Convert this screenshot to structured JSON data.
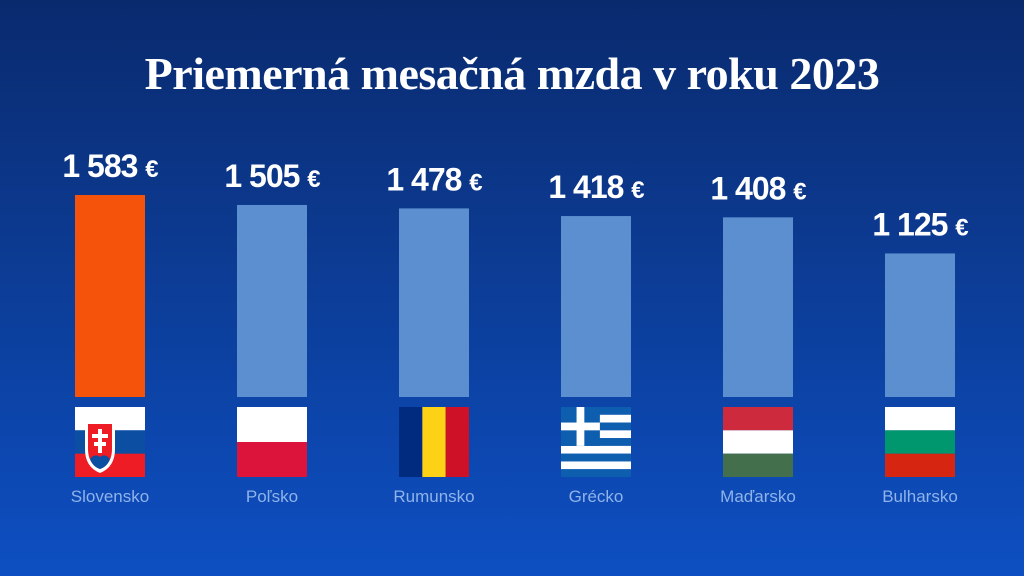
{
  "title": "Priemerná mesačná mzda v roku 2023",
  "colors": {
    "highlight_bar": "#f5520c",
    "bar": "#5b8fcf"
  },
  "chart_data": {
    "type": "bar",
    "title": "Priemerná mesačná mzda v roku 2023",
    "categories": [
      "Slovensko",
      "Poľsko",
      "Rumunsko",
      "Grécko",
      "Maďarsko",
      "Bulharsko"
    ],
    "values": [
      1583,
      1505,
      1478,
      1418,
      1408,
      1125
    ],
    "value_labels": [
      "1 583",
      "1 505",
      "1 478",
      "1 418",
      "1 408",
      "1 125"
    ],
    "unit": "€",
    "highlight_index": 0,
    "flags": [
      "flag-slovakia-icon",
      "flag-poland-icon",
      "flag-romania-icon",
      "flag-greece-icon",
      "flag-hungary-icon",
      "flag-bulgaria-icon"
    ],
    "xlabel": "",
    "ylabel": "",
    "grid": false,
    "legend": "none"
  }
}
